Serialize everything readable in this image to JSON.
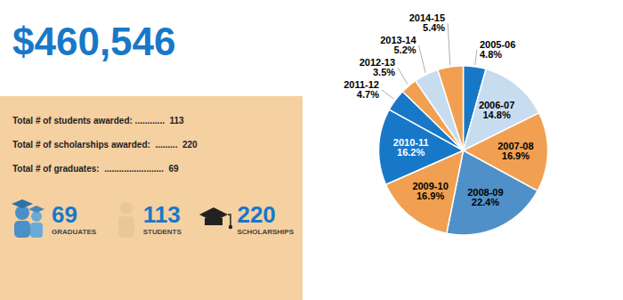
{
  "chart_data": {
    "type": "pie",
    "title": "$460,546",
    "categories": [
      "2005-06",
      "2006-07",
      "2007-08",
      "2008-09",
      "2009-10",
      "2010-11",
      "2011-12",
      "2012-13",
      "2013-14",
      "2014-15"
    ],
    "values": [
      4.8,
      14.8,
      16.9,
      22.4,
      16.9,
      16.2,
      4.7,
      3.5,
      5.2,
      5.4
    ],
    "value_labels": [
      "4.8%",
      "14.8%",
      "16.9%",
      "22.4%",
      "16.9%",
      "16.2%",
      "4.7%",
      "3.5%",
      "5.2%",
      "5.4%"
    ],
    "colors": [
      "#1878C8",
      "#C8DCF0",
      "#F0A050",
      "#5090C8",
      "#F0A050",
      "#1878C8",
      "#1878C8",
      "#F0A050",
      "#C8DCF0",
      "#F0A050"
    ],
    "data_labels": true,
    "annotations": [
      "Total # of students awarded: ............  113",
      "Total # of scholarships awarded:  .........  220",
      "Total # of graduates:  ........................  69",
      "69",
      "GRADUATES",
      "113",
      "STUDENTS",
      "220",
      "SCHOLARSHIPS"
    ]
  }
}
